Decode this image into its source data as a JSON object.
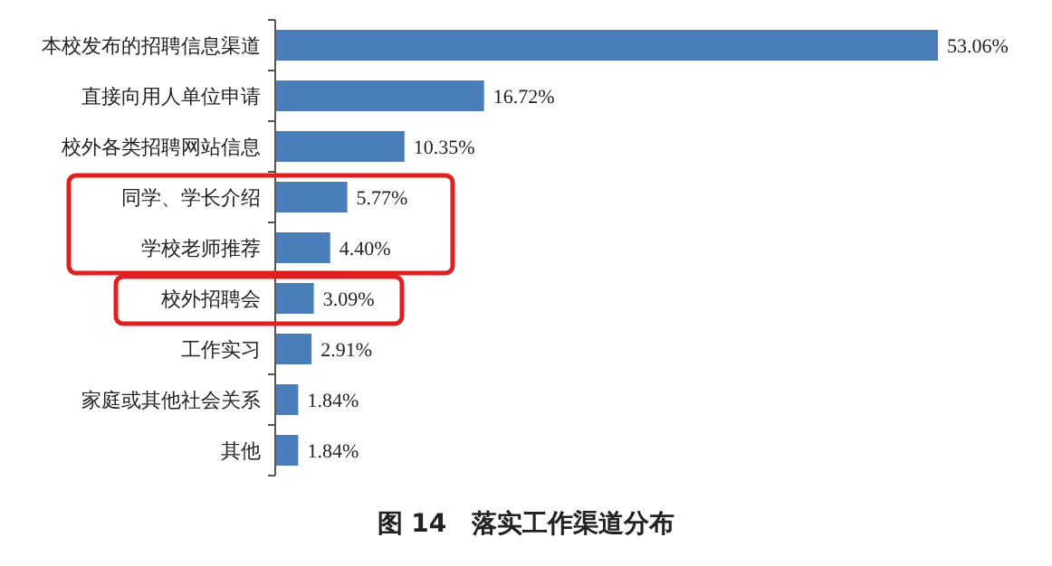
{
  "chart_data": {
    "type": "bar",
    "orientation": "horizontal",
    "title": "图 14　落实工作渠道分布",
    "categories": [
      "本校发布的招聘信息渠道",
      "直接向用人单位申请",
      "校外各类招聘网站信息",
      "同学、学长介绍",
      "学校老师推荐",
      "校外招聘会",
      "工作实习",
      "家庭或其他社会关系",
      "其他"
    ],
    "values": [
      53.06,
      16.72,
      10.35,
      5.77,
      4.4,
      3.09,
      2.91,
      1.84,
      1.84
    ],
    "value_labels": [
      "53.06%",
      "16.72%",
      "10.35%",
      "5.77%",
      "4.40%",
      "3.09%",
      "2.91%",
      "1.84%",
      "1.84%"
    ],
    "color": "#4a7ebb"
  }
}
